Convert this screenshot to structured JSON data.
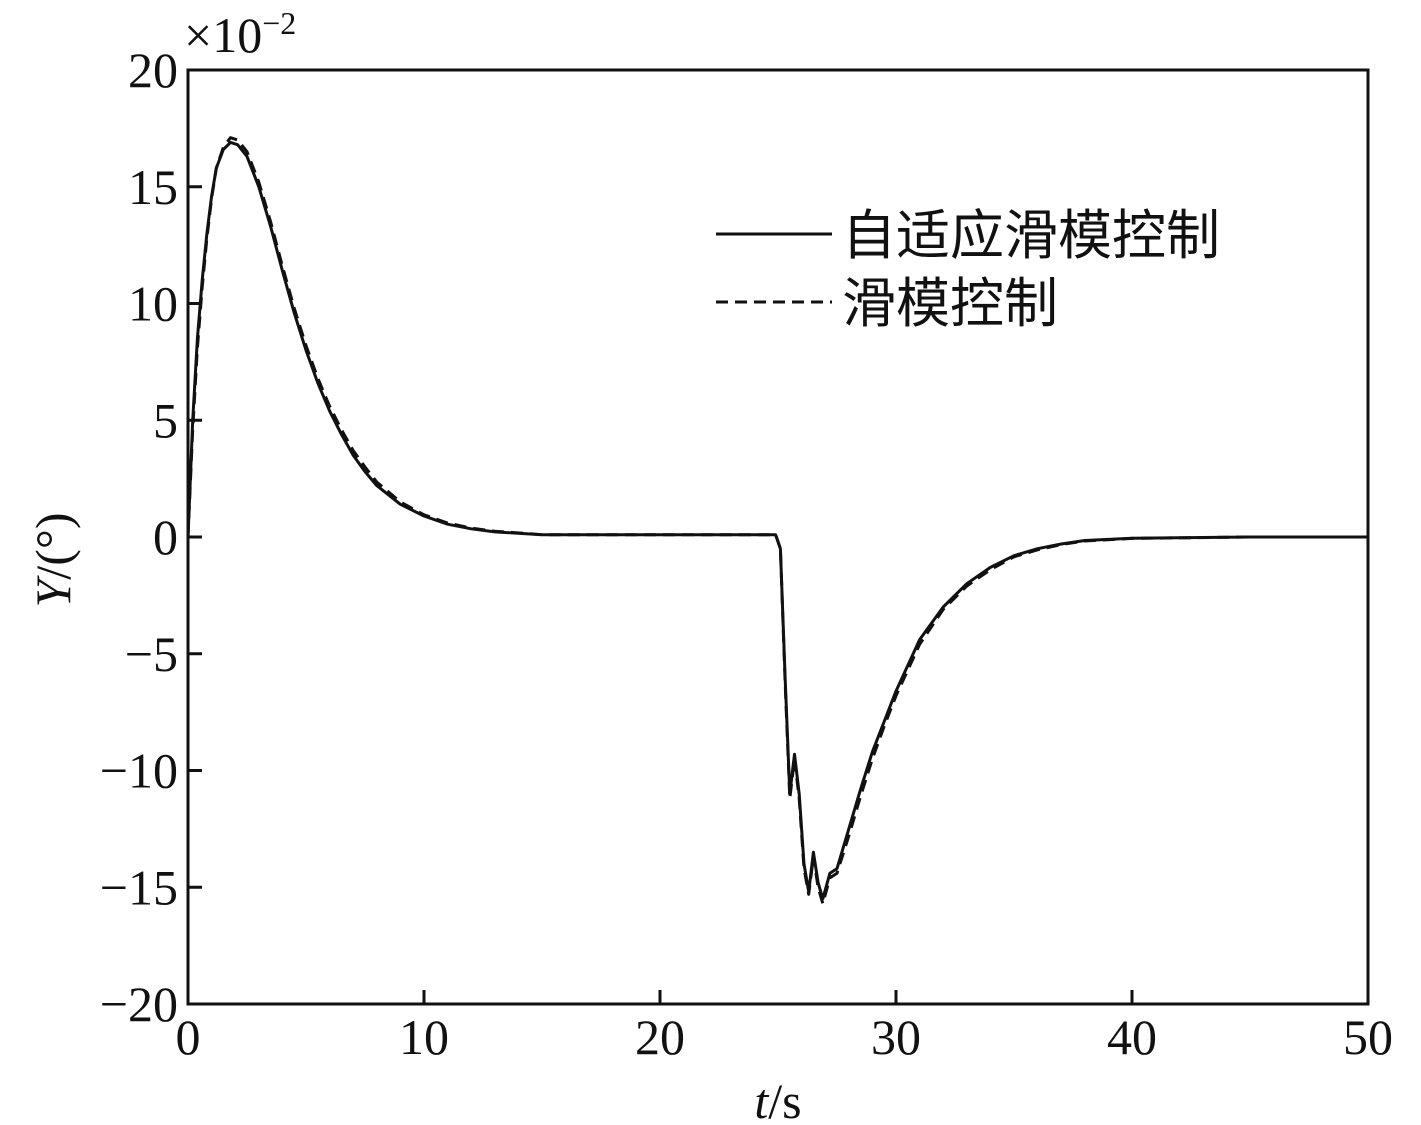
{
  "chart_data": {
    "type": "line",
    "xlabel": {
      "var": "t",
      "unit": "/s"
    },
    "ylabel": {
      "var": "Y",
      "unit": "/(°)"
    },
    "y_scale_note": {
      "base": "×10",
      "exp": "−2"
    },
    "xlim": [
      0,
      50
    ],
    "ylim": [
      -20,
      20
    ],
    "x_ticks": [
      0,
      10,
      20,
      30,
      40,
      50
    ],
    "y_ticks": [
      20,
      15,
      10,
      5,
      0,
      -5,
      -10,
      -15,
      -20
    ],
    "x_tick_labels": [
      "0",
      "10",
      "20",
      "30",
      "40",
      "50"
    ],
    "y_tick_labels": [
      "20",
      "15",
      "10",
      "5",
      "0",
      "−5",
      "−10",
      "−15",
      "−20"
    ],
    "grid": false,
    "legend_placement": "top-right",
    "series": [
      {
        "name": "自适应滑模控制",
        "style": "solid",
        "color": "#111111",
        "points": [
          [
            0,
            0
          ],
          [
            0.2,
            5
          ],
          [
            0.4,
            8.5
          ],
          [
            0.6,
            11
          ],
          [
            0.8,
            13
          ],
          [
            1.0,
            14.6
          ],
          [
            1.2,
            15.8
          ],
          [
            1.5,
            16.6
          ],
          [
            1.8,
            16.9
          ],
          [
            2.1,
            16.8
          ],
          [
            2.5,
            16.3
          ],
          [
            3,
            15.0
          ],
          [
            3.5,
            13.3
          ],
          [
            4,
            11.4
          ],
          [
            4.5,
            9.6
          ],
          [
            5,
            8.0
          ],
          [
            5.5,
            6.6
          ],
          [
            6,
            5.4
          ],
          [
            6.5,
            4.4
          ],
          [
            7,
            3.5
          ],
          [
            7.5,
            2.8
          ],
          [
            8,
            2.2
          ],
          [
            9,
            1.4
          ],
          [
            10,
            0.9
          ],
          [
            11,
            0.55
          ],
          [
            12,
            0.35
          ],
          [
            13,
            0.22
          ],
          [
            15,
            0.1
          ],
          [
            20,
            0.1
          ],
          [
            24.9,
            0.1
          ],
          [
            25.1,
            -0.5
          ],
          [
            25.3,
            -6
          ],
          [
            25.5,
            -11
          ],
          [
            25.7,
            -9.3
          ],
          [
            25.9,
            -11
          ],
          [
            26.1,
            -14
          ],
          [
            26.3,
            -15.2
          ],
          [
            26.5,
            -13.5
          ],
          [
            26.7,
            -14.8
          ],
          [
            26.9,
            -15.5
          ],
          [
            27.2,
            -14.4
          ],
          [
            27.5,
            -14.2
          ],
          [
            28,
            -12.5
          ],
          [
            28.5,
            -10.8
          ],
          [
            29,
            -9.2
          ],
          [
            29.5,
            -7.9
          ],
          [
            30,
            -6.6
          ],
          [
            31,
            -4.4
          ],
          [
            32,
            -3.0
          ],
          [
            33,
            -2.0
          ],
          [
            34,
            -1.3
          ],
          [
            35,
            -0.8
          ],
          [
            36,
            -0.5
          ],
          [
            37,
            -0.3
          ],
          [
            38,
            -0.15
          ],
          [
            40,
            -0.05
          ],
          [
            45,
            0
          ],
          [
            50,
            0
          ]
        ]
      },
      {
        "name": "滑模控制",
        "style": "dashed",
        "color": "#111111",
        "points": [
          [
            0,
            0
          ],
          [
            0.2,
            4.6
          ],
          [
            0.4,
            8.1
          ],
          [
            0.6,
            10.7
          ],
          [
            0.8,
            12.8
          ],
          [
            1.0,
            14.5
          ],
          [
            1.2,
            15.8
          ],
          [
            1.5,
            16.7
          ],
          [
            1.8,
            17.1
          ],
          [
            2.1,
            17.0
          ],
          [
            2.5,
            16.5
          ],
          [
            3,
            15.2
          ],
          [
            3.5,
            13.5
          ],
          [
            4,
            11.6
          ],
          [
            4.5,
            9.8
          ],
          [
            5,
            8.2
          ],
          [
            5.5,
            6.8
          ],
          [
            6,
            5.6
          ],
          [
            6.5,
            4.6
          ],
          [
            7,
            3.7
          ],
          [
            7.5,
            3.0
          ],
          [
            8,
            2.35
          ],
          [
            9,
            1.5
          ],
          [
            10,
            0.95
          ],
          [
            11,
            0.6
          ],
          [
            12,
            0.38
          ],
          [
            13,
            0.25
          ],
          [
            15,
            0.1
          ],
          [
            20,
            0.1
          ],
          [
            24.9,
            0.1
          ],
          [
            25.1,
            -0.5
          ],
          [
            25.3,
            -6.2
          ],
          [
            25.5,
            -11.2
          ],
          [
            25.7,
            -9.5
          ],
          [
            25.9,
            -11.2
          ],
          [
            26.1,
            -14.2
          ],
          [
            26.3,
            -15.3
          ],
          [
            26.5,
            -13.7
          ],
          [
            26.7,
            -15.0
          ],
          [
            26.9,
            -15.7
          ],
          [
            27.2,
            -14.6
          ],
          [
            27.5,
            -14.4
          ],
          [
            28,
            -12.8
          ],
          [
            28.5,
            -11.1
          ],
          [
            29,
            -9.5
          ],
          [
            29.5,
            -8.1
          ],
          [
            30,
            -6.8
          ],
          [
            31,
            -4.6
          ],
          [
            32,
            -3.1
          ],
          [
            33,
            -2.1
          ],
          [
            34,
            -1.4
          ],
          [
            35,
            -0.85
          ],
          [
            36,
            -0.55
          ],
          [
            37,
            -0.32
          ],
          [
            38,
            -0.17
          ],
          [
            40,
            -0.06
          ],
          [
            45,
            0
          ],
          [
            50,
            0
          ]
        ]
      }
    ]
  }
}
